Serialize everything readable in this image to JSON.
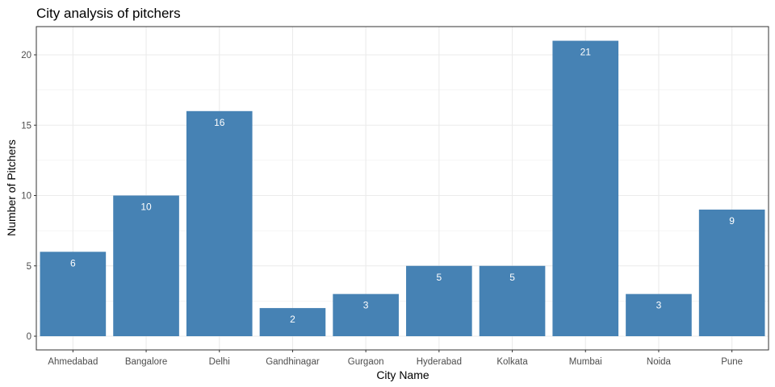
{
  "chart_data": {
    "type": "bar",
    "title": "City analysis of pitchers",
    "xlabel": "City Name",
    "ylabel": "Number of Pitchers",
    "categories": [
      "Ahmedabad",
      "Bangalore",
      "Delhi",
      "Gandhinagar",
      "Gurgaon",
      "Hyderabad",
      "Kolkata",
      "Mumbai",
      "Noida",
      "Pune"
    ],
    "values": [
      6,
      10,
      16,
      2,
      3,
      5,
      5,
      21,
      3,
      9
    ],
    "ylim": [
      0,
      22
    ],
    "yticks": [
      0,
      5,
      10,
      15,
      20
    ],
    "grid": true,
    "legend": "none",
    "bar_color": "#4682b4",
    "label_color": "#ffffff",
    "grid_color": "#ebebeb"
  }
}
